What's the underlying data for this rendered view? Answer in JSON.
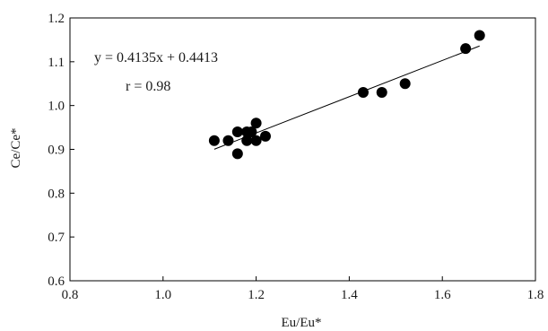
{
  "chart_data": {
    "type": "scatter",
    "xlabel": "Eu/Eu*",
    "ylabel": "Ce/Ce*",
    "xlim": [
      0.8,
      1.8
    ],
    "ylim": [
      0.6,
      1.2
    ],
    "x_ticks": [
      "0.8",
      "1.0",
      "1.2",
      "1.4",
      "1.6",
      "1.8"
    ],
    "y_ticks": [
      "0.6",
      "0.7",
      "0.8",
      "0.9",
      "1.0",
      "1.1",
      "1.2"
    ],
    "grid": false,
    "series": [
      {
        "points": [
          {
            "x": 1.11,
            "y": 0.92
          },
          {
            "x": 1.14,
            "y": 0.92
          },
          {
            "x": 1.16,
            "y": 0.94
          },
          {
            "x": 1.16,
            "y": 0.89
          },
          {
            "x": 1.18,
            "y": 0.94
          },
          {
            "x": 1.18,
            "y": 0.92
          },
          {
            "x": 1.19,
            "y": 0.94
          },
          {
            "x": 1.2,
            "y": 0.92
          },
          {
            "x": 1.2,
            "y": 0.96
          },
          {
            "x": 1.22,
            "y": 0.93
          },
          {
            "x": 1.43,
            "y": 1.03
          },
          {
            "x": 1.47,
            "y": 1.03
          },
          {
            "x": 1.52,
            "y": 1.05
          },
          {
            "x": 1.65,
            "y": 1.13
          },
          {
            "x": 1.68,
            "y": 1.16
          }
        ]
      }
    ],
    "trendline": {
      "slope": 0.4135,
      "intercept": 0.4413,
      "x_range": [
        1.11,
        1.68
      ]
    },
    "annotations": {
      "equation": "y = 0.4135x + 0.4413",
      "r": "r  = 0.98"
    }
  }
}
